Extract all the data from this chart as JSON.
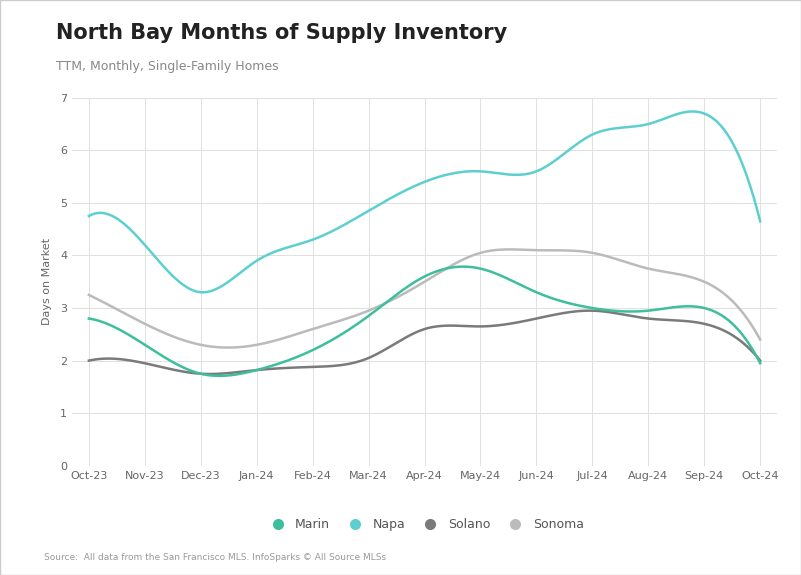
{
  "title": "North Bay Months of Supply Inventory",
  "subtitle": "TTM, Monthly, Single-Family Homes",
  "ylabel": "Days on Market",
  "source": "Source:  All data from the San Francisco MLS. InfoSparks © All Source MLSs",
  "x_labels": [
    "Oct-23",
    "Nov-23",
    "Dec-23",
    "Jan-24",
    "Feb-24",
    "Mar-24",
    "Apr-24",
    "May-24",
    "Jun-24",
    "Jul-24",
    "Aug-24",
    "Sep-24",
    "Oct-24"
  ],
  "marin": [
    2.8,
    2.3,
    1.75,
    1.82,
    2.2,
    2.85,
    3.6,
    3.75,
    3.3,
    3.0,
    2.95,
    3.0,
    1.95
  ],
  "napa": [
    4.75,
    4.2,
    3.3,
    3.9,
    4.3,
    4.85,
    5.4,
    5.6,
    5.6,
    6.3,
    6.5,
    6.7,
    4.65
  ],
  "solano": [
    2.0,
    1.95,
    1.75,
    1.82,
    1.88,
    2.05,
    2.6,
    2.65,
    2.8,
    2.95,
    2.8,
    2.7,
    2.0
  ],
  "sonoma": [
    3.25,
    2.7,
    2.3,
    2.3,
    2.6,
    2.95,
    3.5,
    4.05,
    4.1,
    4.05,
    3.75,
    3.5,
    2.4
  ],
  "marin_color": "#3dbf9e",
  "napa_color": "#5ecfcf",
  "solano_color": "#7a7a7a",
  "sonoma_color": "#bbbbbb",
  "background_color": "#ffffff",
  "border_color": "#cccccc",
  "ylim": [
    0,
    7
  ],
  "yticks": [
    0,
    1,
    2,
    3,
    4,
    5,
    6,
    7
  ],
  "title_fontsize": 15,
  "subtitle_fontsize": 9,
  "tick_fontsize": 8,
  "ylabel_fontsize": 8,
  "legend_fontsize": 9
}
